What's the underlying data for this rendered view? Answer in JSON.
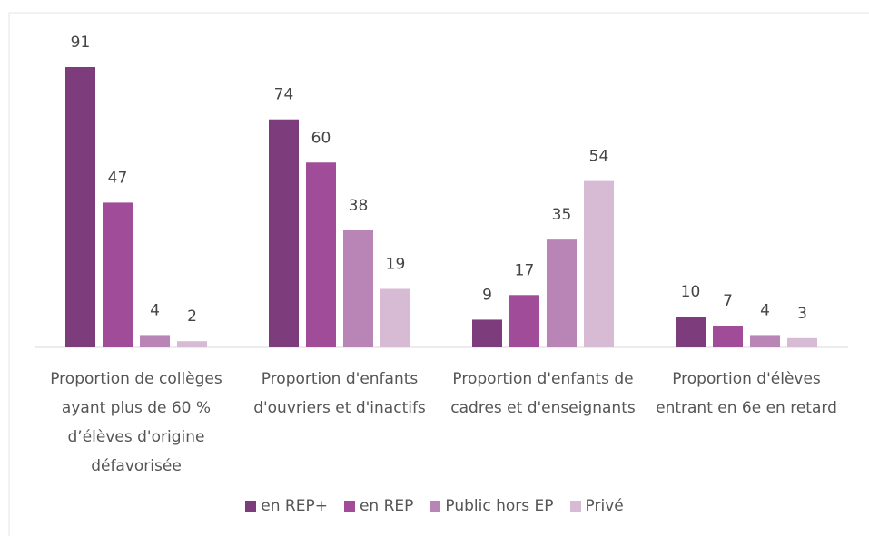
{
  "chart_data": {
    "type": "bar",
    "categories": [
      "Proportion de collèges ayant plus de 60 % d’élèves d'origine défavorisée",
      "Proportion d'enfants d'ouvriers et d'inactifs",
      "Proportion d'enfants de cadres et d'enseignants",
      "Proportion d'élèves entrant en 6e en retard"
    ],
    "series": [
      {
        "name": "en REP+",
        "color": "#7d3c7c",
        "values": [
          91,
          74,
          9,
          10
        ]
      },
      {
        "name": "en REP",
        "color": "#a04c98",
        "values": [
          47,
          60,
          17,
          7
        ]
      },
      {
        "name": "Public hors EP",
        "color": "#b984b6",
        "values": [
          4,
          38,
          35,
          4
        ]
      },
      {
        "name": "Privé",
        "color": "#d7bad4",
        "values": [
          2,
          19,
          54,
          3
        ]
      }
    ],
    "legend": "bottom"
  }
}
